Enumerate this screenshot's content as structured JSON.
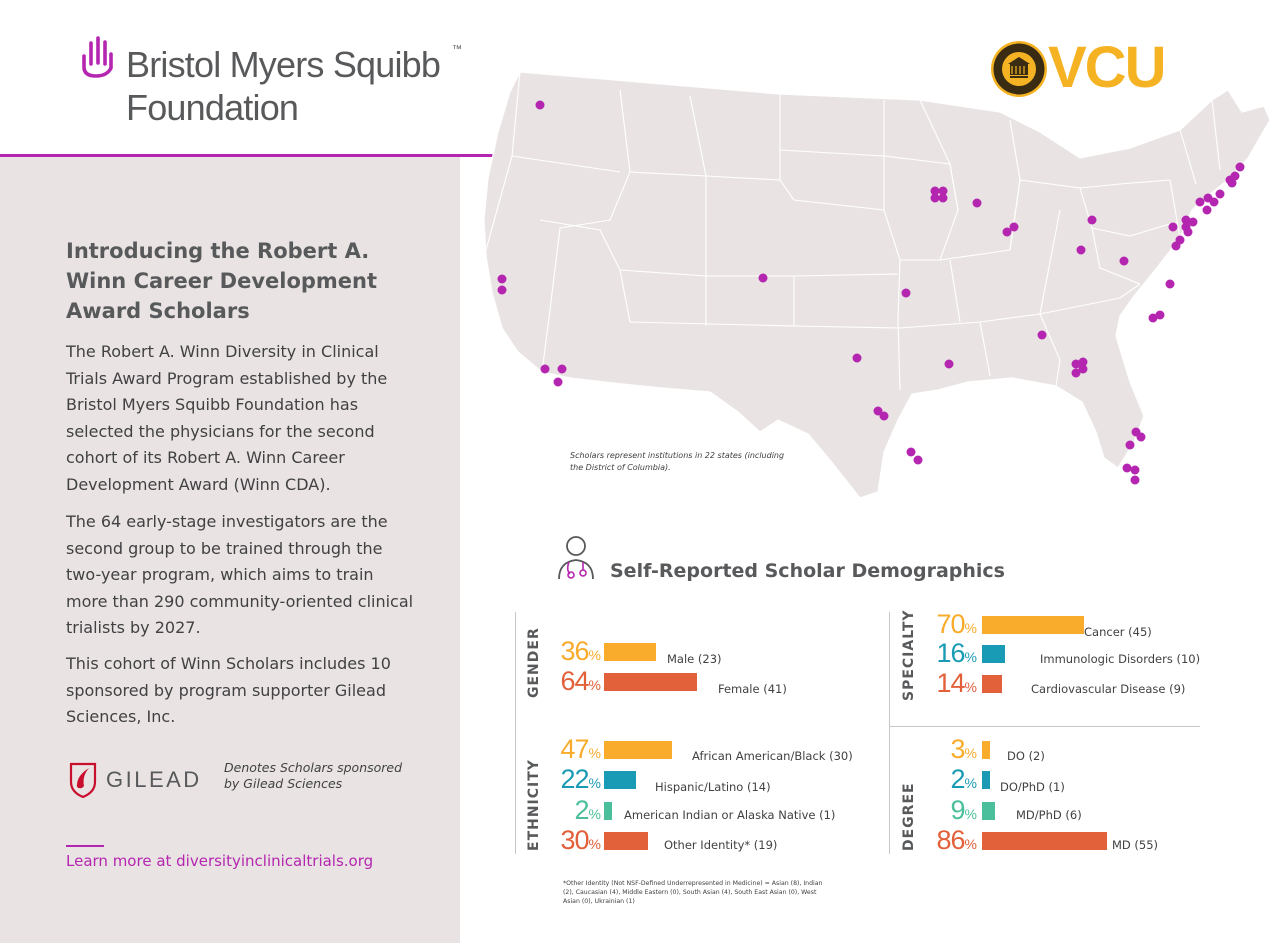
{
  "brand": {
    "name": "Bristol Myers Squibb",
    "trademark": "™",
    "sub": "Foundation",
    "accent_color": "#b526b0"
  },
  "partner": {
    "name": "VCU",
    "color": "#f5b324",
    "seal_color": "#3a2c12"
  },
  "intro": {
    "title": "Introducing the Robert A. Winn Career Development Award Scholars",
    "paragraphs": [
      "The Robert A. Winn Diversity in Clinical Trials Award Program established by the Bristol Myers Squibb Foundation has selected the physicians for the second cohort of its Robert A. Winn Career Development Award (Winn CDA).",
      "The 64 early-stage investigators are the second group to be trained through the two-year program, which aims to train more than 290 community-oriented clinical trialists by 2027.",
      "This cohort of Winn Scholars includes 10 sponsored by program supporter Gilead Sciences, Inc."
    ]
  },
  "gilead": {
    "name": "GILEAD",
    "note": "Denotes Scholars sponsored by Gilead Sciences",
    "color": "#c8102e"
  },
  "learn_more": "Learn more at diversityinclinicaltrials.org",
  "map": {
    "note": "Scholars represent institutions in 22 states (including the District of Columbia).",
    "dot_color": "#b526b0",
    "land_color": "#e9e4e3"
  },
  "demographics": {
    "title": "Self-Reported Scholar Demographics",
    "colors": {
      "orange": "#f9ab2c",
      "teal": "#1a9bb5",
      "green": "#4bbf9b",
      "red": "#e2603a"
    },
    "gender": {
      "label": "GENDER",
      "rows": [
        {
          "pct": "36",
          "label": "Male (23)",
          "value": 36,
          "color": "#f9ab2c"
        },
        {
          "pct": "64",
          "label": "Female (41)",
          "value": 64,
          "color": "#e2603a"
        }
      ]
    },
    "ethnicity": {
      "label": "ETHNICITY",
      "rows": [
        {
          "pct": "47",
          "label": "African American/Black (30)",
          "value": 47,
          "color": "#f9ab2c"
        },
        {
          "pct": "22",
          "label": "Hispanic/Latino (14)",
          "value": 22,
          "color": "#1a9bb5"
        },
        {
          "pct": "2",
          "label": "American Indian or Alaska Native (1)",
          "value": 2,
          "color": "#4bbf9b"
        },
        {
          "pct": "30",
          "label": "Other Identity* (19)",
          "value": 30,
          "color": "#e2603a"
        }
      ]
    },
    "specialty": {
      "label": "SPECIALTY",
      "rows": [
        {
          "pct": "70",
          "label": "Cancer (45)",
          "value": 70,
          "color": "#f9ab2c"
        },
        {
          "pct": "16",
          "label": "Immunologic Disorders (10)",
          "value": 16,
          "color": "#1a9bb5"
        },
        {
          "pct": "14",
          "label": "Cardiovascular Disease (9)",
          "value": 14,
          "color": "#e2603a"
        }
      ]
    },
    "degree": {
      "label": "DEGREE",
      "rows": [
        {
          "pct": "3",
          "label": "DO (2)",
          "value": 3,
          "color": "#f9ab2c"
        },
        {
          "pct": "2",
          "label": "DO/PhD (1)",
          "value": 2,
          "color": "#1a9bb5"
        },
        {
          "pct": "9",
          "label": "MD/PhD (6)",
          "value": 9,
          "color": "#4bbf9b"
        },
        {
          "pct": "86",
          "label": "MD (55)",
          "value": 86,
          "color": "#e2603a"
        }
      ]
    },
    "pct_symbol": "%",
    "footnote": "*Other Identity (Not NSF-Defined Underrepresented in Medicine) = Asian (8), Indian (2), Caucasian (4), Middle Eastern (0), South Asian (4), South East Asian (0), West Asian (0), Ukrainian (1)"
  }
}
